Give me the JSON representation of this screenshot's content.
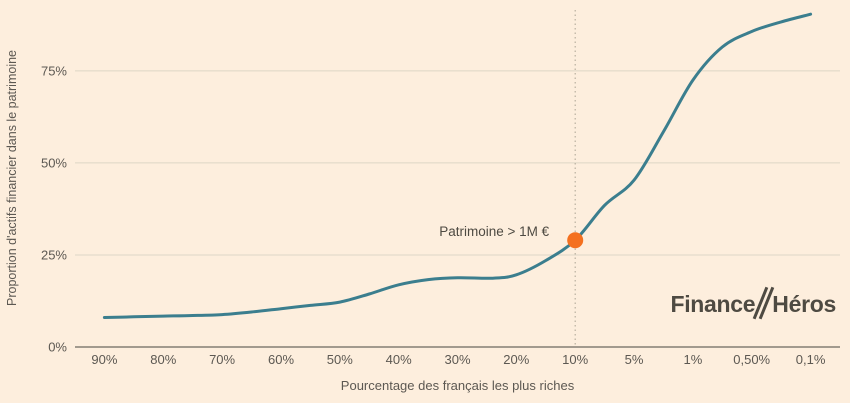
{
  "colors": {
    "background": "#fdeedd",
    "grid": "#ddd6c6",
    "axis": "#6b675f",
    "text": "#5c5852",
    "annotation_text": "#4e4a42",
    "dotted_line": "#b8b0a0",
    "line": "#3b7e8e",
    "dot": "#f4701f",
    "logo": "#4e4a42"
  },
  "chart_data": {
    "type": "line",
    "title": "",
    "xlabel": "Pourcentage des français les plus riches",
    "ylabel": "Proportion d'actifs financier dans le patrimoine",
    "categories": [
      "90%",
      "80%",
      "70%",
      "60%",
      "50%",
      "40%",
      "30%",
      "20%",
      "10%",
      "5%",
      "1%",
      "0,50%",
      "0,1%"
    ],
    "values": [
      8,
      8.4,
      8.8,
      10.4,
      12.2,
      16.9,
      18.8,
      19.6,
      29,
      45.3,
      72.5,
      85.7,
      90.4
    ],
    "y_ticks": [
      {
        "value": 0,
        "label": "0%"
      },
      {
        "value": 25,
        "label": "25%"
      },
      {
        "value": 50,
        "label": "50%"
      },
      {
        "value": 75,
        "label": "75%"
      }
    ],
    "ylim": [
      0,
      91
    ],
    "grid": true,
    "legend_position": "none",
    "curve_points": [
      [
        0,
        8.0
      ],
      [
        0.5,
        8.2
      ],
      [
        1,
        8.4
      ],
      [
        1.5,
        8.55
      ],
      [
        2,
        8.8
      ],
      [
        2.5,
        9.5
      ],
      [
        3,
        10.4
      ],
      [
        3.5,
        11.3
      ],
      [
        4,
        12.2
      ],
      [
        4.5,
        14.4
      ],
      [
        5,
        16.9
      ],
      [
        5.5,
        18.3
      ],
      [
        6,
        18.8
      ],
      [
        6.6,
        18.7
      ],
      [
        7,
        19.6
      ],
      [
        7.5,
        23.5
      ],
      [
        8,
        29
      ],
      [
        8.5,
        38.5
      ],
      [
        9,
        45.3
      ],
      [
        9.5,
        58.5
      ],
      [
        10,
        72.5
      ],
      [
        10.5,
        81.5
      ],
      [
        11,
        85.7
      ],
      [
        11.5,
        88.3
      ],
      [
        12,
        90.4
      ]
    ],
    "annotation": {
      "label": "Patrimoine > 1M €",
      "category": "10%",
      "x_index": 8,
      "value": 29
    }
  },
  "logo": {
    "part1": "Finance",
    "part2": "Héros"
  }
}
